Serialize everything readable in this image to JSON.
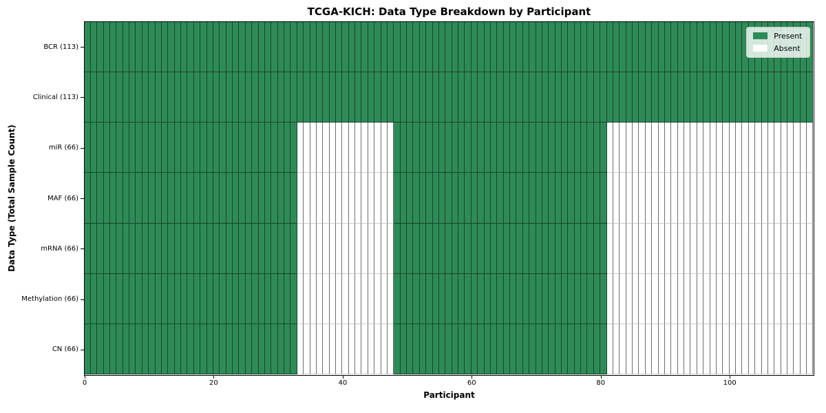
{
  "chart_data": {
    "type": "heatmap",
    "title": "TCGA-KICH: Data Type Breakdown by Participant",
    "xlabel": "Participant",
    "ylabel": "Data Type (Total Sample Count)",
    "n_participants": 113,
    "x_range": [
      0,
      113
    ],
    "x_ticks": [
      0,
      20,
      40,
      60,
      80,
      100
    ],
    "grid": true,
    "legend_position": "upper right",
    "legend": [
      {
        "label": "Present",
        "color": "#2e8b57"
      },
      {
        "label": "Absent",
        "color": "#ffffff"
      }
    ],
    "colors": {
      "present": "#2e8b57",
      "absent": "#ffffff",
      "edge_on_present": "rgba(0,0,0,0.5)",
      "vline_on_absent": "#6e6e6e",
      "hline_on_absent": "#c9c9c9"
    },
    "rows": [
      {
        "label": "BCR (113)",
        "present_count": 113,
        "present_ranges": [
          [
            0,
            113
          ]
        ]
      },
      {
        "label": "Clinical (113)",
        "present_count": 113,
        "present_ranges": [
          [
            0,
            113
          ]
        ]
      },
      {
        "label": "miR (66)",
        "present_count": 66,
        "present_ranges": [
          [
            0,
            33
          ],
          [
            48,
            81
          ]
        ]
      },
      {
        "label": "MAF (66)",
        "present_count": 66,
        "present_ranges": [
          [
            0,
            33
          ],
          [
            48,
            81
          ]
        ]
      },
      {
        "label": "mRNA (66)",
        "present_count": 66,
        "present_ranges": [
          [
            0,
            33
          ],
          [
            48,
            81
          ]
        ]
      },
      {
        "label": "Methylation (66)",
        "present_count": 66,
        "present_ranges": [
          [
            0,
            33
          ],
          [
            48,
            81
          ]
        ]
      },
      {
        "label": "CN (66)",
        "present_count": 66,
        "present_ranges": [
          [
            0,
            33
          ],
          [
            48,
            81
          ]
        ]
      }
    ]
  }
}
